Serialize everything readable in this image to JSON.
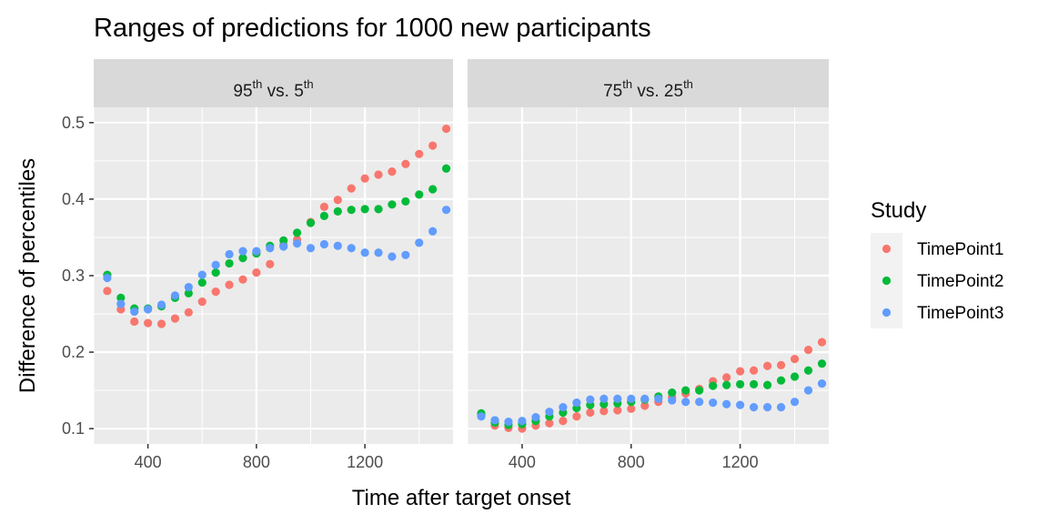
{
  "chart_data": {
    "type": "scatter",
    "title": "Ranges of predictions for 1000 new participants",
    "xlabel": "Time after target onset",
    "ylabel": "Difference of percentiles",
    "xlim": [
      200,
      1525
    ],
    "ylim": [
      0.08,
      0.52
    ],
    "x_ticks": [
      400,
      800,
      1200
    ],
    "y_ticks": [
      0.1,
      0.2,
      0.3,
      0.4,
      0.5
    ],
    "x_tick_labels": [
      "400",
      "800",
      "1200"
    ],
    "y_tick_labels": [
      "0.1",
      "0.2",
      "0.3",
      "0.4",
      "0.5"
    ],
    "grid": true,
    "legend": {
      "title": "Study",
      "position": "right"
    },
    "x": [
      250,
      300,
      350,
      400,
      450,
      500,
      550,
      600,
      650,
      700,
      750,
      800,
      850,
      900,
      950,
      1000,
      1050,
      1100,
      1150,
      1200,
      1250,
      1300,
      1350,
      1400,
      1450,
      1500
    ],
    "panels": [
      {
        "label": {
          "a": "95",
          "a_sup": "th",
          "mid": " vs. ",
          "b": "5",
          "b_sup": "th"
        },
        "series": [
          {
            "name": "TimePoint1",
            "color": "#F8766D",
            "values": [
              0.28,
              0.256,
              0.24,
              0.238,
              0.237,
              0.244,
              0.252,
              0.266,
              0.279,
              0.288,
              0.295,
              0.304,
              0.315,
              0.34,
              0.347,
              0.37,
              0.39,
              0.399,
              0.414,
              0.427,
              0.432,
              0.436,
              0.446,
              0.459,
              0.47,
              0.492
            ]
          },
          {
            "name": "TimePoint2",
            "color": "#00BA38",
            "values": [
              0.301,
              0.271,
              0.257,
              0.257,
              0.26,
              0.271,
              0.277,
              0.291,
              0.304,
              0.316,
              0.323,
              0.329,
              0.339,
              0.346,
              0.356,
              0.369,
              0.378,
              0.384,
              0.386,
              0.387,
              0.387,
              0.393,
              0.397,
              0.406,
              0.413,
              0.44
            ]
          },
          {
            "name": "TimePoint3",
            "color": "#619CFF",
            "values": [
              0.297,
              0.263,
              0.253,
              0.256,
              0.262,
              0.274,
              0.285,
              0.301,
              0.314,
              0.328,
              0.332,
              0.332,
              0.336,
              0.338,
              0.342,
              0.336,
              0.341,
              0.339,
              0.336,
              0.33,
              0.33,
              0.325,
              0.327,
              0.343,
              0.358,
              0.386
            ]
          }
        ]
      },
      {
        "label": {
          "a": "75",
          "a_sup": "th",
          "mid": " vs. ",
          "b": "25",
          "b_sup": "th"
        },
        "series": [
          {
            "name": "TimePoint1",
            "color": "#F8766D",
            "values": [
              0.117,
              0.104,
              0.101,
              0.1,
              0.104,
              0.107,
              0.11,
              0.116,
              0.121,
              0.123,
              0.124,
              0.126,
              0.13,
              0.135,
              0.141,
              0.146,
              0.152,
              0.162,
              0.167,
              0.175,
              0.176,
              0.182,
              0.183,
              0.191,
              0.203,
              0.213
            ]
          },
          {
            "name": "TimePoint2",
            "color": "#00BA38",
            "values": [
              0.12,
              0.108,
              0.105,
              0.106,
              0.11,
              0.116,
              0.121,
              0.127,
              0.131,
              0.132,
              0.133,
              0.135,
              0.138,
              0.142,
              0.147,
              0.15,
              0.15,
              0.156,
              0.157,
              0.158,
              0.158,
              0.157,
              0.163,
              0.168,
              0.176,
              0.185
            ]
          },
          {
            "name": "TimePoint3",
            "color": "#619CFF",
            "values": [
              0.116,
              0.111,
              0.109,
              0.11,
              0.115,
              0.122,
              0.128,
              0.134,
              0.138,
              0.139,
              0.139,
              0.139,
              0.139,
              0.139,
              0.137,
              0.135,
              0.135,
              0.134,
              0.132,
              0.131,
              0.128,
              0.128,
              0.128,
              0.135,
              0.15,
              0.159
            ]
          }
        ]
      }
    ]
  }
}
